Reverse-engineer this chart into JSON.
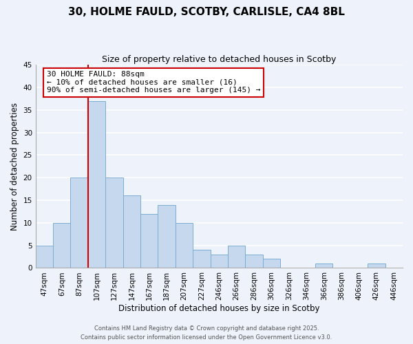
{
  "title": "30, HOLME FAULD, SCOTBY, CARLISLE, CA4 8BL",
  "subtitle": "Size of property relative to detached houses in Scotby",
  "xlabel": "Distribution of detached houses by size in Scotby",
  "ylabel": "Number of detached properties",
  "bar_labels": [
    "47sqm",
    "67sqm",
    "87sqm",
    "107sqm",
    "127sqm",
    "147sqm",
    "167sqm",
    "187sqm",
    "207sqm",
    "227sqm",
    "246sqm",
    "266sqm",
    "286sqm",
    "306sqm",
    "326sqm",
    "346sqm",
    "366sqm",
    "386sqm",
    "406sqm",
    "426sqm",
    "446sqm"
  ],
  "bar_values": [
    5,
    10,
    20,
    37,
    20,
    16,
    12,
    14,
    10,
    4,
    3,
    5,
    3,
    2,
    0,
    0,
    1,
    0,
    0,
    1,
    0
  ],
  "bar_color": "#c5d8ee",
  "bar_edge_color": "#7aadd4",
  "ylim": [
    0,
    45
  ],
  "yticks": [
    0,
    5,
    10,
    15,
    20,
    25,
    30,
    35,
    40,
    45
  ],
  "vline_color": "#cc0000",
  "annotation_text": "30 HOLME FAULD: 88sqm\n← 10% of detached houses are smaller (16)\n90% of semi-detached houses are larger (145) →",
  "annotation_box_color": "#ffffff",
  "annotation_box_edge_color": "#cc0000",
  "footnote1": "Contains HM Land Registry data © Crown copyright and database right 2025.",
  "footnote2": "Contains public sector information licensed under the Open Government Licence v3.0.",
  "bg_color": "#eef3fb",
  "grid_color": "#ffffff",
  "title_fontsize": 11,
  "subtitle_fontsize": 9,
  "axis_label_fontsize": 8.5,
  "tick_fontsize": 7.5,
  "annotation_fontsize": 8,
  "footnote_fontsize": 6
}
